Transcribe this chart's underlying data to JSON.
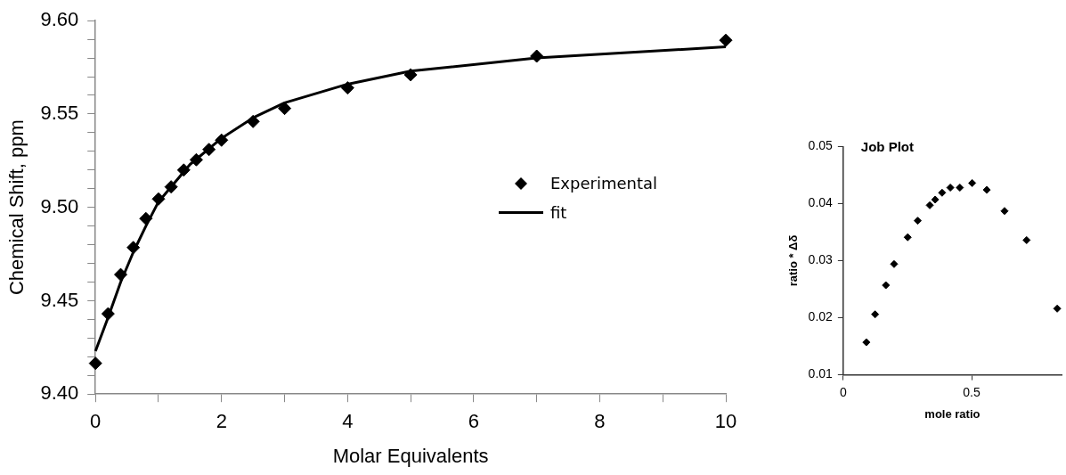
{
  "chart_data": [
    {
      "type": "scatter",
      "xlabel": "Molar Equivalents",
      "ylabel": "Chemical Shift, ppm",
      "xlim": [
        0,
        10
      ],
      "ylim": [
        9.4,
        9.6
      ],
      "xticks": [
        0,
        {
          "value": 1,
          "label": null
        },
        2,
        {
          "value": 3,
          "label": null
        },
        4,
        {
          "value": 5,
          "label": null
        },
        6,
        {
          "value": 7,
          "label": null
        },
        8,
        {
          "value": 9,
          "label": null
        },
        10
      ],
      "yticks": [
        {
          "value": 9.4,
          "label": "9.40"
        },
        {
          "value": 9.41,
          "label": null
        },
        {
          "value": 9.42,
          "label": null
        },
        {
          "value": 9.43,
          "label": null
        },
        {
          "value": 9.44,
          "label": null
        },
        {
          "value": 9.45,
          "label": "9.45"
        },
        {
          "value": 9.46,
          "label": null
        },
        {
          "value": 9.47,
          "label": null
        },
        {
          "value": 9.48,
          "label": null
        },
        {
          "value": 9.49,
          "label": null
        },
        {
          "value": 9.5,
          "label": "9.50"
        },
        {
          "value": 9.51,
          "label": null
        },
        {
          "value": 9.52,
          "label": null
        },
        {
          "value": 9.53,
          "label": null
        },
        {
          "value": 9.54,
          "label": null
        },
        {
          "value": 9.55,
          "label": "9.55"
        },
        {
          "value": 9.56,
          "label": null
        },
        {
          "value": 9.57,
          "label": null
        },
        {
          "value": 9.58,
          "label": null
        },
        {
          "value": 9.59,
          "label": null
        },
        {
          "value": 9.6,
          "label": "9.60"
        }
      ],
      "grid": false,
      "legend": "right",
      "series": [
        {
          "name": "fit",
          "type": "line",
          "marker": "none",
          "line_style": "solid",
          "color": "#000000",
          "x": [
            0,
            0.2,
            0.4,
            0.6,
            0.8,
            1,
            1.5,
            2,
            2.5,
            3,
            4,
            5,
            7,
            10
          ],
          "values": [
            9.423,
            9.441,
            9.46,
            9.476,
            9.49,
            9.503,
            9.523,
            9.537,
            9.548,
            9.556,
            9.566,
            9.573,
            9.58,
            9.586
          ]
        },
        {
          "name": "Experimental",
          "type": "scatter",
          "marker": "diamond",
          "color": "#000000",
          "x": [
            0,
            0.2,
            0.4,
            0.6,
            0.8,
            1,
            1.2,
            1.4,
            1.6,
            1.8,
            2,
            2.5,
            3,
            4,
            5,
            7,
            10
          ],
          "values": [
            9.4165,
            9.443,
            9.464,
            9.4785,
            9.494,
            9.5045,
            9.511,
            9.52,
            9.5255,
            9.531,
            9.536,
            9.546,
            9.553,
            9.564,
            9.571,
            9.581,
            9.5895
          ]
        }
      ]
    },
    {
      "type": "scatter",
      "title": "Job Plot",
      "xlabel": "mole ratio",
      "ylabel": "ratio * Δδ",
      "xlim": [
        0,
        0.85
      ],
      "ylim": [
        0.01,
        0.05
      ],
      "xticks": [
        0,
        0.5
      ],
      "yticks": [
        0.01,
        0.02,
        0.03,
        0.04,
        0.05
      ],
      "grid": false,
      "legend": false,
      "series": [
        {
          "type": "scatter",
          "marker": "diamond",
          "color": "#000000",
          "x": [
            0.09,
            0.124,
            0.166,
            0.198,
            0.251,
            0.29,
            0.337,
            0.358,
            0.385,
            0.417,
            0.454,
            0.502,
            0.559,
            0.628,
            0.714,
            0.833
          ],
          "values": [
            0.0157,
            0.0206,
            0.0257,
            0.0294,
            0.0341,
            0.037,
            0.0397,
            0.0407,
            0.0419,
            0.0428,
            0.0428,
            0.0436,
            0.0424,
            0.0387,
            0.0336,
            0.0216
          ]
        }
      ]
    }
  ]
}
